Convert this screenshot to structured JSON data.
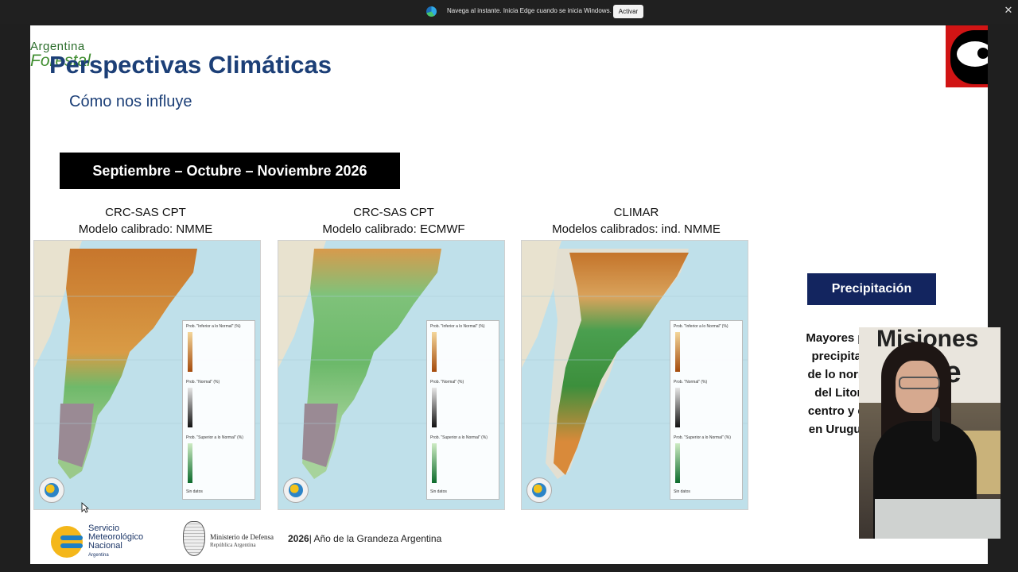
{
  "notification": {
    "message": "Navega al instante. Inicia Edge cuando se inicia Windows.",
    "action_label": "Activar",
    "close_glyph": "✕",
    "icon": "edge-icon"
  },
  "slide": {
    "logo_left": {
      "line1": "Argentina",
      "line2": "Forestal"
    },
    "title": "Perspectivas Climáticas",
    "subtitle": "Cómo nos influye",
    "period": "Septiembre – Octubre – Noviembre 2026",
    "models": [
      {
        "line1": "CRC-SAS CPT",
        "line2": "Modelo calibrado: NMME",
        "legend": {
          "below": "Prob. \"Inferior a lo Normal\" (%)",
          "normal": "Prob. \"Normal\" (%)",
          "above": "Prob. \"Superior a lo Normal\" (%)",
          "nodata": "Sin datos"
        }
      },
      {
        "line1": "CRC-SAS CPT",
        "line2": "Modelo calibrado: ECMWF",
        "legend": {
          "below": "Prob. \"Inferior a lo Normal\" (%)",
          "normal": "Prob. \"Normal\" (%)",
          "above": "Prob. \"Superior a lo Normal\" (%)",
          "nodata": "Sin datos"
        }
      },
      {
        "line1": "CLIMAR",
        "line2": "Modelos calibrados: ind. NMME",
        "legend": {
          "below": "Prob. \"Inferior a lo Normal\" (%)",
          "normal": "Prob. \"Normal\" (%)",
          "above": "Prob. \"Superior a lo Normal\" (%)",
          "nodata": "Sin datos"
        }
      }
    ],
    "precip_label": "Precipitación",
    "precip_text": [
      "Mayores pro",
      "precipitaci",
      "de lo norma",
      "del Litora",
      "centro y est",
      "en Uruguay"
    ],
    "footer": {
      "smn_line1": "Servicio",
      "smn_line2": "Meteorológico",
      "smn_line3": "Nacional",
      "smn_line4": "Argentina",
      "ministry_line1": "Ministerio de Defensa",
      "ministry_line2": "República Argentina",
      "year": "2026",
      "year_text": "| Año de la Grandeza Argentina"
    }
  },
  "webcam": {
    "banner_line1": "Misiones",
    "banner_line2": "nline"
  }
}
